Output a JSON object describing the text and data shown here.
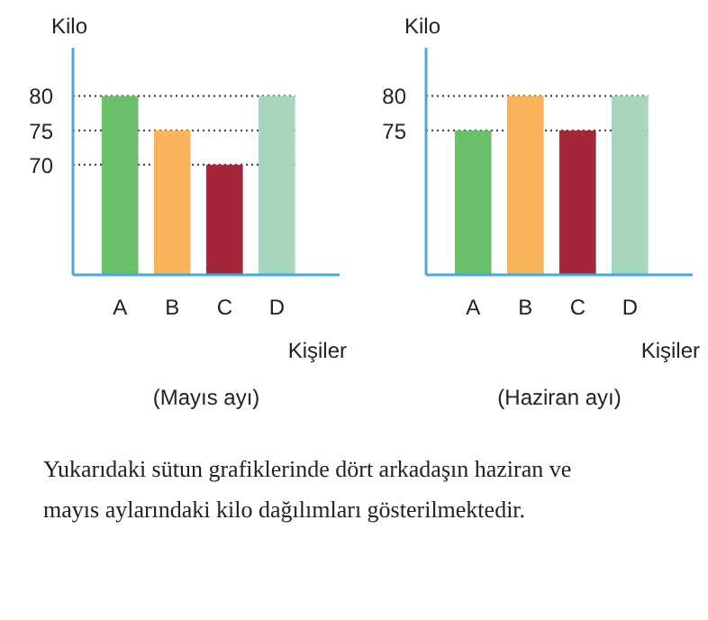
{
  "chart_data": [
    {
      "type": "bar",
      "title": "(Mayıs ayı)",
      "xlabel": "Kişiler",
      "ylabel": "Kilo",
      "categories": [
        "A",
        "B",
        "C",
        "D"
      ],
      "values": [
        80,
        75,
        70,
        80
      ],
      "colors": [
        "#6cbf6a",
        "#f9b35a",
        "#a3263a",
        "#a8d5bd"
      ],
      "ylim": [
        54,
        87
      ],
      "yticks": [
        70,
        75,
        80
      ],
      "ref_lines": [
        {
          "axis": "y",
          "value": 80,
          "line_style": "dotted"
        },
        {
          "axis": "y",
          "value": 75,
          "line_style": "dotted"
        },
        {
          "axis": "y",
          "value": 70,
          "line_style": "dotted"
        }
      ],
      "annotations": [
        "Yukarıdaki sütun grafiklerinde dört arkadaşın haziran ve mayıs aylarındaki kilo dağılımları gösterilmektedir."
      ]
    },
    {
      "type": "bar",
      "title": "(Haziran ayı)",
      "xlabel": "Kişiler",
      "ylabel": "Kilo",
      "categories": [
        "A",
        "B",
        "C",
        "D"
      ],
      "values": [
        75,
        80,
        75,
        80
      ],
      "colors": [
        "#6cbf6a",
        "#f9b35a",
        "#a3263a",
        "#a8d5bd"
      ],
      "ylim": [
        54,
        87
      ],
      "yticks": [
        75,
        80
      ],
      "ref_lines": [
        {
          "axis": "y",
          "value": 80,
          "line_style": "dotted"
        },
        {
          "axis": "y",
          "value": 75,
          "line_style": "dotted"
        }
      ]
    }
  ]
}
